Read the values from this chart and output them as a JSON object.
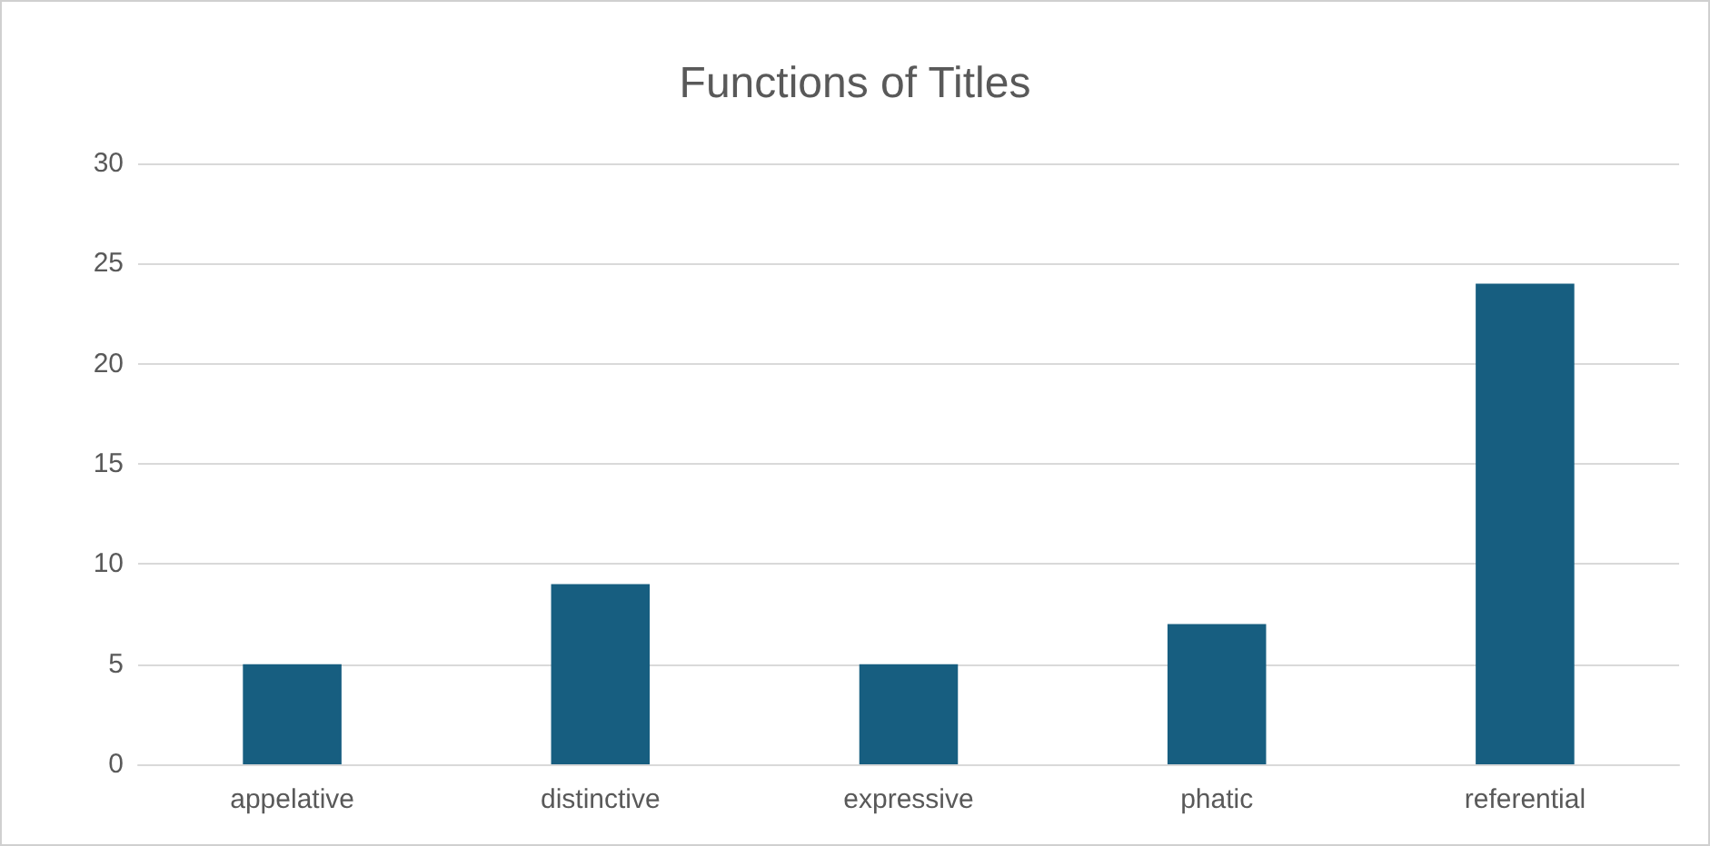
{
  "chart_data": {
    "type": "bar",
    "title": "Functions of Titles",
    "categories": [
      "appelative",
      "distinctive",
      "expressive",
      "phatic",
      "referential"
    ],
    "values": [
      5,
      9,
      5,
      7,
      24
    ],
    "color": "#175e80",
    "ylim": [
      0,
      30
    ],
    "yticks": [
      0,
      5,
      10,
      15,
      20,
      25,
      30
    ],
    "grid": "y"
  }
}
